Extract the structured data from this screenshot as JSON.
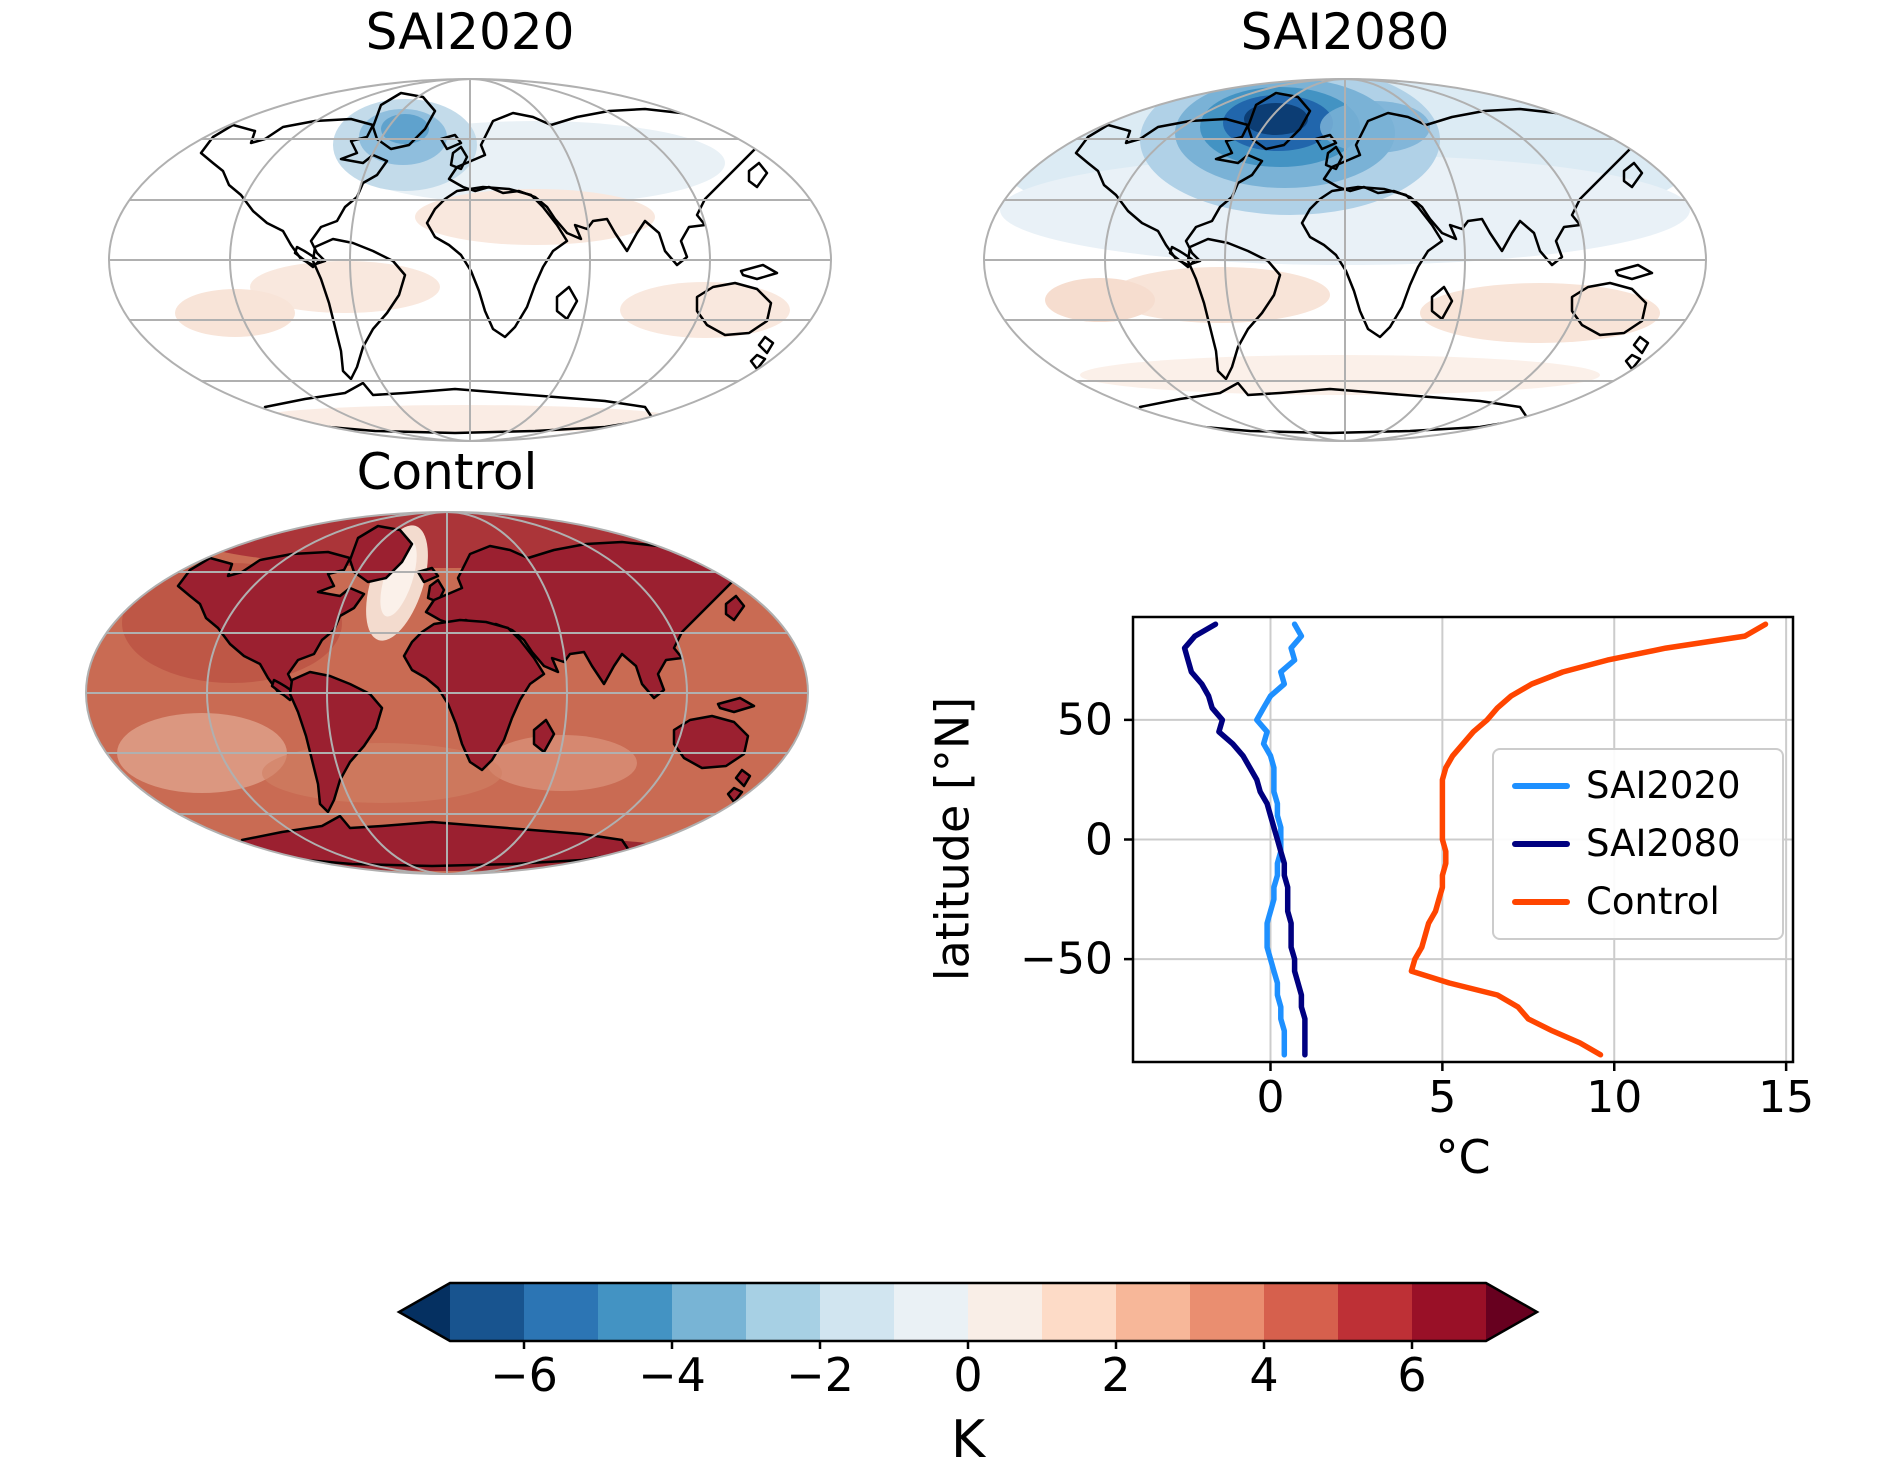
{
  "figure": {
    "background": "#ffffff",
    "panels": {
      "sai2020": {
        "title": "SAI2020"
      },
      "sai2080": {
        "title": "SAI2080"
      },
      "control": {
        "title": "Control"
      },
      "profile": {
        "xlabel": "°C",
        "ylabel": "latitude [°N]"
      }
    },
    "colorbar_label": "K"
  },
  "chart_data": [
    {
      "type": "line",
      "id": "zonal-mean-profile",
      "xlabel": "°C",
      "ylabel": "latitude [°N]",
      "xlim": [
        -4.0,
        15.2
      ],
      "ylim": [
        -93,
        93
      ],
      "grid": true,
      "xticks": {
        "values": [
          0,
          5,
          10,
          15
        ],
        "labels": [
          "0",
          "5",
          "10",
          "15"
        ]
      },
      "yticks": {
        "values": [
          50,
          0,
          -50
        ],
        "labels": [
          "50",
          "0",
          "−50"
        ]
      },
      "legend": {
        "position": "center-right",
        "entries": [
          "SAI2020",
          "SAI2080",
          "Control"
        ]
      },
      "orientation": "x = temperature (°C), y = latitude (°N)",
      "latitude": [
        90,
        85,
        80,
        75,
        70,
        65,
        60,
        55,
        50,
        45,
        40,
        35,
        30,
        25,
        20,
        15,
        10,
        5,
        0,
        -5,
        -10,
        -15,
        -20,
        -25,
        -30,
        -35,
        -40,
        -45,
        -50,
        -55,
        -60,
        -65,
        -70,
        -75,
        -80,
        -85,
        -90
      ],
      "series": [
        {
          "name": "SAI2020",
          "color": "#1e90ff",
          "values_C": [
            0.7,
            0.9,
            0.6,
            0.7,
            0.3,
            0.4,
            0.0,
            -0.2,
            -0.4,
            -0.1,
            -0.2,
            0.0,
            0.1,
            0.1,
            0.1,
            0.2,
            0.2,
            0.3,
            0.3,
            0.3,
            0.2,
            0.2,
            0.1,
            0.1,
            0.0,
            -0.1,
            -0.1,
            -0.1,
            0.0,
            0.1,
            0.2,
            0.2,
            0.3,
            0.3,
            0.4,
            0.4,
            0.4
          ]
        },
        {
          "name": "SAI2080",
          "color": "#000080",
          "values_C": [
            -1.6,
            -2.2,
            -2.5,
            -2.4,
            -2.3,
            -2.0,
            -1.8,
            -1.7,
            -1.4,
            -1.5,
            -1.1,
            -0.8,
            -0.6,
            -0.4,
            -0.3,
            -0.1,
            0.0,
            0.1,
            0.2,
            0.3,
            0.4,
            0.4,
            0.5,
            0.5,
            0.5,
            0.6,
            0.6,
            0.6,
            0.7,
            0.7,
            0.8,
            0.9,
            0.9,
            1.0,
            1.0,
            1.0,
            1.0
          ]
        },
        {
          "name": "Control",
          "color": "#ff4500",
          "values_C": [
            14.4,
            13.8,
            11.5,
            9.8,
            8.5,
            7.6,
            7.0,
            6.6,
            6.3,
            5.9,
            5.6,
            5.3,
            5.1,
            5.0,
            5.0,
            5.0,
            5.0,
            5.0,
            5.0,
            5.1,
            5.1,
            5.0,
            5.0,
            4.9,
            4.8,
            4.6,
            4.5,
            4.4,
            4.2,
            4.1,
            5.2,
            6.6,
            7.2,
            7.5,
            8.2,
            9.0,
            9.6
          ]
        }
      ]
    },
    {
      "type": "heatmap",
      "id": "map-sai2020",
      "title": "SAI2020",
      "units": "K",
      "projection": "global-ellipse",
      "value_range": [
        -7,
        7
      ],
      "pattern": "near-zero anomalies overall; moderate cooling patch (−1 to −4 K) over the North Atlantic south of Greenland; faint warm patches (< +1 K) in subtropical bands"
    },
    {
      "type": "heatmap",
      "id": "map-sai2080",
      "title": "SAI2080",
      "units": "K",
      "projection": "global-ellipse",
      "value_range": [
        -7,
        7
      ],
      "pattern": "widespread Northern Hemisphere cooling; strong cooling center (to about −6 K) over Greenland, the North Atlantic and the Nordic seas; weak warm anomalies over Southern Hemisphere oceans"
    },
    {
      "type": "heatmap",
      "id": "map-control",
      "title": "Control",
      "units": "K",
      "projection": "global-ellipse",
      "value_range": [
        -7,
        7
      ],
      "pattern": "strong global warming of roughly +4 to +7 K everywhere; darkest warming over continents, the Arctic and Antarctica; relatively weaker warming streak in the North Atlantic south of Greenland"
    },
    {
      "type": "colorbar",
      "label": "K",
      "orientation": "horizontal",
      "tick_values": [
        -6,
        -4,
        -2,
        0,
        2,
        4,
        6
      ],
      "tick_labels": [
        "−6",
        "−4",
        "−2",
        "0",
        "2",
        "4",
        "6"
      ],
      "levels": [
        -7,
        -6,
        -5,
        -4,
        -3,
        -2,
        -1,
        0,
        1,
        2,
        3,
        4,
        5,
        6,
        7
      ],
      "colors": [
        "#18548f",
        "#2c75b4",
        "#4393c3",
        "#78b4d5",
        "#a7d0e4",
        "#d1e5f0",
        "#eaf1f5",
        "#f9eee7",
        "#fddbc7",
        "#f7b799",
        "#ea8e70",
        "#d6604d",
        "#be3036",
        "#991027"
      ],
      "extend": {
        "under": "#053061",
        "over": "#67001f"
      }
    }
  ]
}
